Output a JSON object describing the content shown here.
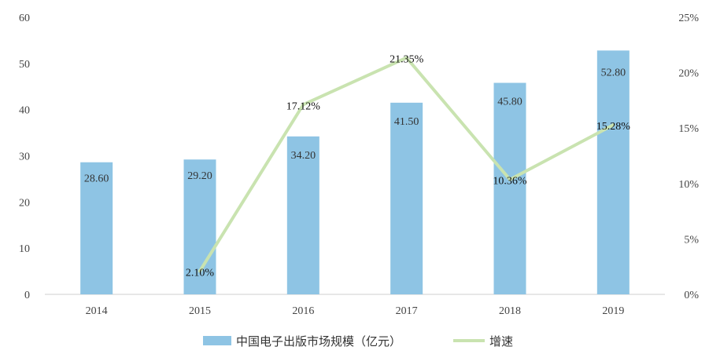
{
  "chart_data": {
    "type": "bar",
    "categories": [
      "2014",
      "2015",
      "2016",
      "2017",
      "2018",
      "2019"
    ],
    "series": [
      {
        "name": "中国电子出版市场规模（亿元）",
        "type": "bar",
        "axis": "left",
        "values": [
          28.6,
          29.2,
          34.2,
          41.5,
          45.8,
          52.8
        ],
        "labels": [
          "28.60",
          "29.20",
          "34.20",
          "41.50",
          "45.80",
          "52.80"
        ],
        "color": "#8EC4E4"
      },
      {
        "name": "增速",
        "type": "line",
        "axis": "right",
        "values": [
          2.1,
          17.12,
          21.35,
          10.36,
          15.28
        ],
        "x": [
          "2015",
          "2016",
          "2017",
          "2018",
          "2019"
        ],
        "labels": [
          "2.10%",
          "17.12%",
          "21.35%",
          "10.36%",
          "15.28%"
        ],
        "color": "#C9E3B0"
      }
    ],
    "y_left": {
      "ticks": [
        "0",
        "10",
        "20",
        "30",
        "40",
        "50",
        "60"
      ],
      "lim": [
        0,
        60
      ]
    },
    "y_right": {
      "ticks": [
        "0%",
        "5%",
        "10%",
        "15%",
        "20%",
        "25%"
      ],
      "lim": [
        0,
        25
      ]
    },
    "grid": false,
    "legend_position": "bottom"
  }
}
